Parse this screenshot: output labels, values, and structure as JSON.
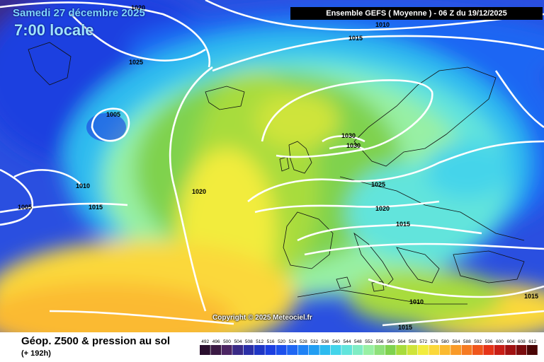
{
  "header": {
    "date": "Samedi 27 décembre 2025",
    "time": "7:00 locale",
    "model_run": "Ensemble GEFS  ( Moyenne )  -  06 Z du 19/12/2025"
  },
  "copyright": "Copyright © 2025 Meteociel.fr",
  "footer": {
    "title": "Géop. Z500 & pression au sol",
    "lead_time": "(+ 192h)"
  },
  "scale": {
    "ticks": [
      "492",
      "496",
      "500",
      "504",
      "508",
      "512",
      "516",
      "520",
      "524",
      "528",
      "532",
      "536",
      "540",
      "544",
      "548",
      "552",
      "556",
      "560",
      "564",
      "568",
      "572",
      "576",
      "580",
      "584",
      "588",
      "592",
      "596",
      "600",
      "604",
      "608",
      "612"
    ],
    "colors": [
      "#2a0f2e",
      "#3b1a44",
      "#4c2563",
      "#3a2a86",
      "#2b2fa6",
      "#1f36c4",
      "#1c3fe0",
      "#1d50ec",
      "#1f66f3",
      "#1f82f5",
      "#229ef2",
      "#2dbbef",
      "#44d4ea",
      "#62e4dc",
      "#7fecc4",
      "#98f0a4",
      "#8ee07a",
      "#7fd24e",
      "#a8dc3c",
      "#cfe43a",
      "#f2ec3e",
      "#fbd83a",
      "#fbba30",
      "#f99a28",
      "#f57a22",
      "#ef561c",
      "#e53418",
      "#c81e16",
      "#a11212",
      "#7a0c0e",
      "#4a0606"
    ]
  },
  "isobar_labels": [
    {
      "id": "1020-top",
      "text": "1020"
    },
    {
      "id": "1025-nw",
      "text": "1025"
    },
    {
      "id": "1005-low",
      "text": "1005"
    },
    {
      "id": "1010-w",
      "text": "1010"
    },
    {
      "id": "1005-w",
      "text": "1005"
    },
    {
      "id": "1015-w",
      "text": "1015"
    },
    {
      "id": "1020-atl",
      "text": "1020"
    },
    {
      "id": "1010-n",
      "text": "1010"
    },
    {
      "id": "1015-n",
      "text": "1015"
    },
    {
      "id": "1030-a",
      "text": "1030"
    },
    {
      "id": "1030-b",
      "text": "1030"
    },
    {
      "id": "1025-c",
      "text": "1025"
    },
    {
      "id": "1020-c",
      "text": "1020"
    },
    {
      "id": "1015-alps",
      "text": "1015"
    },
    {
      "id": "1010-med",
      "text": "1010"
    },
    {
      "id": "1015-se",
      "text": "1015"
    },
    {
      "id": "1015-e",
      "text": "1015"
    }
  ]
}
